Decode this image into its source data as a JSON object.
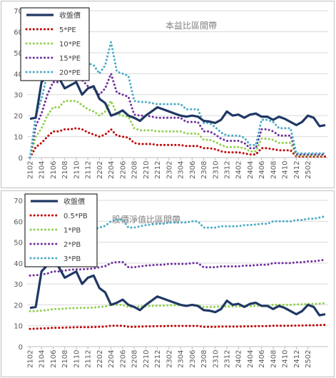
{
  "chart_data": [
    {
      "type": "line",
      "title": "本益比區間帶",
      "ylim": [
        0,
        70
      ],
      "y_ticks": [
        0,
        10,
        20,
        30,
        40,
        50,
        60,
        70
      ],
      "grid": true,
      "legend_position": "top-left",
      "x_tick_labels": [
        "2102",
        "2104",
        "2106",
        "2108",
        "2110",
        "2112",
        "2202",
        "2204",
        "2206",
        "2208",
        "2210",
        "2212",
        "2302",
        "2304",
        "2306",
        "2308",
        "2310",
        "2312",
        "2402",
        "2404",
        "2406",
        "2408",
        "2410",
        "2412",
        "2502"
      ],
      "series": [
        {
          "name": "收盤價",
          "color": "#1f3864",
          "dash": false,
          "values": [
            18.5,
            19,
            36,
            39,
            41.5,
            38,
            33,
            34.5,
            36,
            30,
            33,
            34,
            28,
            26,
            20,
            21,
            22.5,
            20,
            19,
            17.5,
            20,
            22,
            24,
            23,
            22,
            21,
            20,
            19.5,
            20,
            19.5,
            17.5,
            17.2,
            16.5,
            18,
            22,
            20,
            20.5,
            19,
            20.5,
            21,
            19.5,
            19.5,
            18,
            19.5,
            18.5,
            17,
            15.5,
            17,
            20,
            19,
            15,
            15.5
          ]
        },
        {
          "name": "5*PE",
          "color": "#c00000",
          "dash": true,
          "values": [
            0,
            5,
            7,
            10,
            12.5,
            12.5,
            13.5,
            13.5,
            14,
            13.5,
            12,
            11,
            10,
            11,
            13.5,
            10.5,
            10,
            9.5,
            7,
            6.5,
            6.5,
            6.5,
            6,
            6,
            6,
            6,
            6,
            5.5,
            5.5,
            5.5,
            4.5,
            4.5,
            4,
            3,
            2.5,
            2.5,
            2.5,
            2,
            1.5,
            1.5,
            4.5,
            4.5,
            4,
            3.5,
            3.5,
            3.5,
            0.5,
            0.5,
            0.5,
            0.5,
            0.5,
            0.5
          ]
        },
        {
          "name": "10*PE",
          "color": "#92d050",
          "dash": true,
          "values": [
            0,
            10,
            14,
            20,
            24,
            24,
            27,
            27,
            27,
            25,
            23,
            22,
            20,
            22,
            27,
            21,
            20,
            19.5,
            14,
            13,
            13,
            13,
            12.5,
            12.5,
            12.5,
            12.5,
            12.5,
            11.5,
            11.5,
            11.5,
            8.5,
            8.5,
            7.5,
            6,
            5,
            5,
            5,
            4.5,
            3,
            3,
            9,
            9,
            8.5,
            7,
            7,
            7,
            1,
            1,
            1,
            1,
            1,
            1
          ]
        },
        {
          "name": "15*PE",
          "color": "#7030a0",
          "dash": true,
          "values": [
            0,
            15,
            21,
            30,
            36,
            36,
            40,
            40,
            40,
            37,
            34,
            33,
            30,
            33,
            40,
            31,
            30,
            29,
            20.5,
            20,
            20,
            19.5,
            19,
            19,
            19,
            19,
            19,
            17,
            17,
            17,
            12.5,
            12.5,
            11,
            9,
            8,
            8,
            8,
            7,
            4.5,
            4.5,
            13.5,
            13.5,
            12.5,
            10.5,
            10.5,
            10.5,
            1.5,
            1.5,
            1.5,
            1.5,
            1.5,
            1.5
          ]
        },
        {
          "name": "20*PE",
          "color": "#4bacc6",
          "dash": true,
          "values": [
            0,
            20,
            28,
            40,
            48,
            48,
            54,
            54,
            54,
            49,
            45,
            44,
            40,
            44,
            55,
            41,
            40,
            39,
            27,
            26.5,
            26.5,
            26,
            25.5,
            25.5,
            25.5,
            25.5,
            25.5,
            23,
            23,
            23,
            16.5,
            16.5,
            14.5,
            12,
            10.5,
            10.5,
            10.5,
            9.5,
            6,
            6,
            18,
            18,
            17,
            14,
            14,
            14,
            2,
            2,
            2,
            2,
            2,
            2
          ]
        }
      ]
    },
    {
      "type": "line",
      "title": "股價淨值比區間帶",
      "ylim": [
        0,
        70
      ],
      "y_ticks": [
        0,
        10,
        20,
        30,
        40,
        50,
        60,
        70
      ],
      "grid": true,
      "legend_position": "top-left",
      "x_tick_labels": [
        "2102",
        "2104",
        "2106",
        "2108",
        "2110",
        "2112",
        "2202",
        "2204",
        "2206",
        "2208",
        "2210",
        "2212",
        "2302",
        "2304",
        "2306",
        "2308",
        "2310",
        "2312",
        "2402",
        "2404",
        "2406",
        "2408",
        "2410",
        "2412",
        "2502"
      ],
      "series": [
        {
          "name": "收盤價",
          "color": "#1f3864",
          "dash": false,
          "values": [
            18.5,
            19,
            36,
            39,
            41.5,
            38,
            33,
            34.5,
            36,
            30,
            33,
            34,
            28,
            26,
            20,
            21,
            22.5,
            20,
            19,
            17.5,
            20,
            22,
            24,
            23,
            22,
            21,
            20,
            19.5,
            20,
            19.5,
            17.5,
            17.2,
            16.5,
            18,
            22,
            20,
            20.5,
            19,
            20.5,
            21,
            19.5,
            19.5,
            18,
            19.5,
            18.5,
            17,
            15.5,
            17,
            20,
            19,
            15,
            15.5
          ]
        },
        {
          "name": "0.5*PB",
          "color": "#c00000",
          "dash": true,
          "values": [
            8.5,
            8.6,
            8.7,
            8.8,
            9,
            9,
            9.1,
            9.2,
            9.3,
            9.3,
            9.3,
            9.4,
            9.5,
            9.6,
            10,
            10,
            10,
            9.5,
            9.5,
            9.6,
            9.7,
            9.7,
            9.8,
            9.8,
            9.9,
            9.9,
            9.9,
            9.9,
            9.9,
            9.9,
            9.5,
            9.5,
            9.5,
            9.6,
            9.6,
            9.6,
            9.6,
            9.7,
            9.7,
            9.8,
            9.8,
            9.8,
            10,
            10,
            10,
            10,
            10.1,
            10.1,
            10.2,
            10.2,
            10.3,
            10.4
          ]
        },
        {
          "name": "1*PB",
          "color": "#92d050",
          "dash": true,
          "values": [
            17,
            17,
            17.2,
            17.5,
            18,
            18,
            18.2,
            18.4,
            18.5,
            18.5,
            18.6,
            18.7,
            19,
            19.2,
            20,
            20,
            20,
            19,
            19,
            19.2,
            19.4,
            19.5,
            19.6,
            19.6,
            19.8,
            19.8,
            19.8,
            19.8,
            19.8,
            19.8,
            19,
            19,
            19,
            19.2,
            19.2,
            19.2,
            19.2,
            19.4,
            19.4,
            19.5,
            19.6,
            19.6,
            20,
            20,
            20,
            20,
            20.2,
            20.2,
            20.4,
            20.4,
            20.6,
            20.8
          ]
        },
        {
          "name": "2*PB",
          "color": "#7030a0",
          "dash": true,
          "values": [
            34,
            34.2,
            34.5,
            35,
            36,
            36,
            36.4,
            36.8,
            37,
            37,
            37.2,
            37.4,
            38,
            38.5,
            40,
            40.5,
            40.5,
            38,
            38,
            38.4,
            38.8,
            39,
            39.2,
            39.2,
            39.6,
            39.6,
            39.6,
            39.6,
            40,
            40,
            38,
            38,
            38,
            38.4,
            38.4,
            38.4,
            38.4,
            38.8,
            38.8,
            39,
            39.2,
            39.2,
            40,
            40,
            40,
            40,
            40.4,
            40.4,
            40.8,
            40.8,
            41.2,
            41.6
          ]
        },
        {
          "name": "3*PB",
          "color": "#4bacc6",
          "dash": true,
          "values": [
            51,
            51.3,
            51.8,
            52.5,
            54,
            54,
            54.6,
            55.2,
            55.5,
            55.5,
            55.8,
            56.1,
            57,
            57.8,
            60,
            60.8,
            60.8,
            57,
            57,
            57.6,
            58.2,
            58.5,
            58.8,
            58.8,
            59.4,
            59.4,
            59.4,
            59.4,
            60,
            60,
            57,
            57,
            57,
            57.6,
            57.6,
            57.6,
            57.6,
            58.2,
            58.2,
            58.5,
            58.8,
            58.8,
            60,
            60,
            60,
            60,
            60.6,
            60.6,
            61.2,
            61.2,
            61.8,
            62.4
          ]
        }
      ]
    }
  ]
}
